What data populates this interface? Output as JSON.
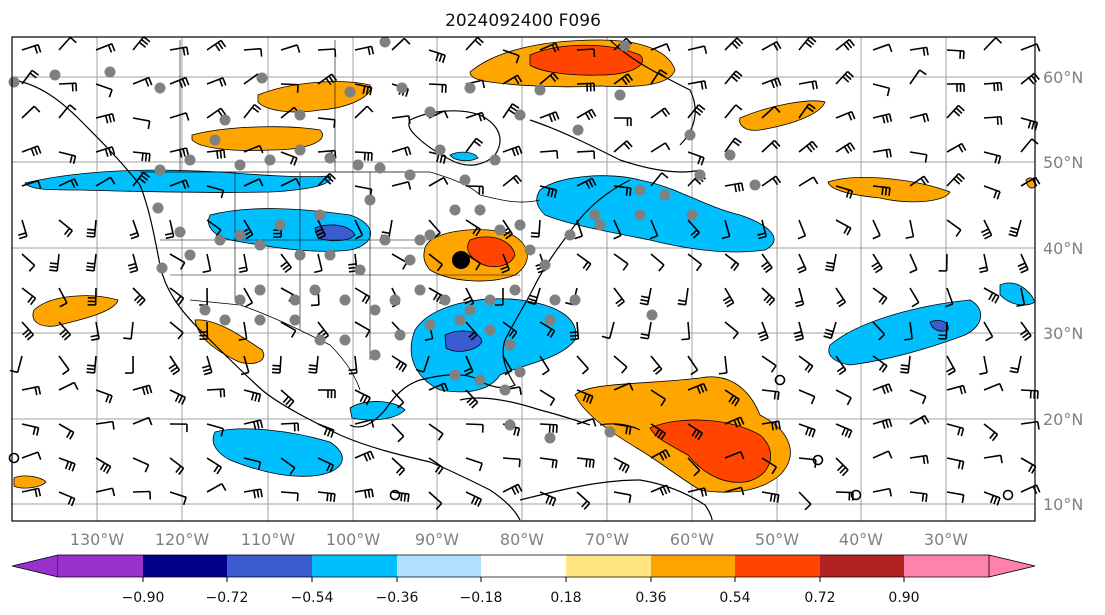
{
  "title": "2024092400 F096",
  "map": {
    "type": "weather-map",
    "region": "North America / North Atlantic",
    "lon_labels": [
      "130°W",
      "120°W",
      "110°W",
      "100°W",
      "90°W",
      "80°W",
      "70°W",
      "60°W",
      "50°W",
      "40°W",
      "30°W"
    ],
    "lat_labels": [
      "60°N",
      "50°N",
      "40°N",
      "30°N",
      "20°N",
      "10°N"
    ],
    "label_color": "#808080",
    "gridline_color": "#a0a0a0"
  },
  "colorbar": {
    "ticks": [
      "−0.90",
      "−0.72",
      "−0.54",
      "−0.36",
      "−0.18",
      "0.18",
      "0.36",
      "0.54",
      "0.72",
      "0.90"
    ],
    "colors": [
      "#9932cc",
      "#00008b",
      "#3b5bd0",
      "#00bfff",
      "#b0e0ff",
      "#ffffff",
      "#ffe680",
      "#ffa500",
      "#ff4500",
      "#b22222",
      "#ff82ab"
    ],
    "extend": "both"
  },
  "colors": {
    "positive_fill": "#ffa500",
    "strong_positive": "#ff4500",
    "negative_fill": "#00bfff",
    "strong_negative": "#3b5bd0",
    "coast": "#000000",
    "station_dot": "#808080",
    "marker": "#000000"
  }
}
